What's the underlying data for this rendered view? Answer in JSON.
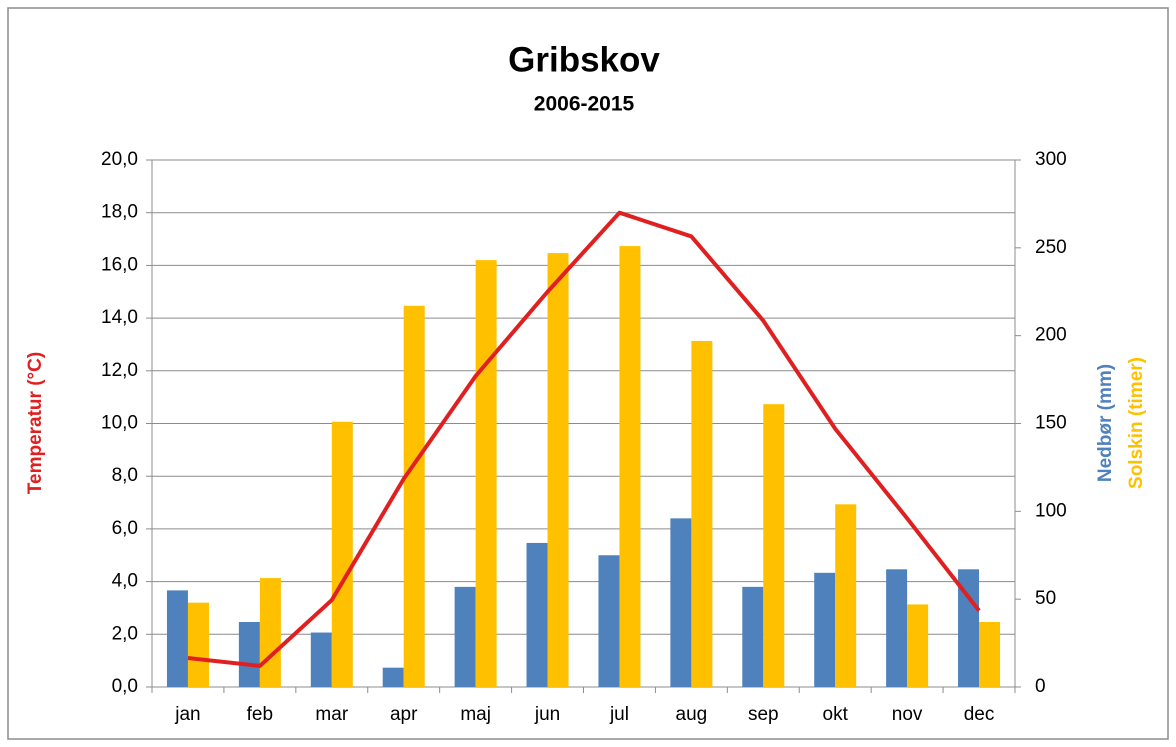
{
  "chart_data": {
    "type": "bar_line",
    "title": "Gribskov",
    "subtitle": "2006-2015",
    "ylabel": "Temperatur (°C)",
    "y2label": [
      "Nedbør (mm)",
      "Solskin (timer)"
    ],
    "categories": [
      "jan",
      "feb",
      "mar",
      "apr",
      "maj",
      "jun",
      "jul",
      "aug",
      "sep",
      "okt",
      "nov",
      "dec"
    ],
    "series": [
      {
        "name": "Nedbør (mm)",
        "type": "bar",
        "axis": "y2",
        "color": "#4f81bd",
        "values": [
          55,
          37,
          31,
          11,
          57,
          82,
          75,
          96,
          57,
          65,
          67,
          67
        ]
      },
      {
        "name": "Solskin (timer)",
        "type": "bar",
        "axis": "y2",
        "color": "#ffc000",
        "values": [
          48,
          62,
          151,
          217,
          243,
          247,
          251,
          197,
          161,
          104,
          47,
          37
        ]
      },
      {
        "name": "Temperatur (°C)",
        "type": "line",
        "axis": "y",
        "color": "#e02020",
        "values": [
          1.1,
          0.8,
          3.3,
          7.9,
          11.8,
          15.0,
          18.0,
          17.1,
          13.9,
          9.8,
          6.4,
          2.9
        ]
      }
    ],
    "ylim": [
      0,
      20
    ],
    "yticks": [
      {
        "value": 0,
        "label": "0,0"
      },
      {
        "value": 2,
        "label": "2,0"
      },
      {
        "value": 4,
        "label": "4,0"
      },
      {
        "value": 6,
        "label": "6,0"
      },
      {
        "value": 8,
        "label": "8,0"
      },
      {
        "value": 10,
        "label": "10,0"
      },
      {
        "value": 12,
        "label": "12,0"
      },
      {
        "value": 14,
        "label": "14,0"
      },
      {
        "value": 16,
        "label": "16,0"
      },
      {
        "value": 18,
        "label": "18,0"
      },
      {
        "value": 20,
        "label": "20,0"
      }
    ],
    "y2lim": [
      0,
      300
    ],
    "y2ticks": [
      0,
      50,
      100,
      150,
      200,
      250,
      300
    ],
    "grid": true
  }
}
